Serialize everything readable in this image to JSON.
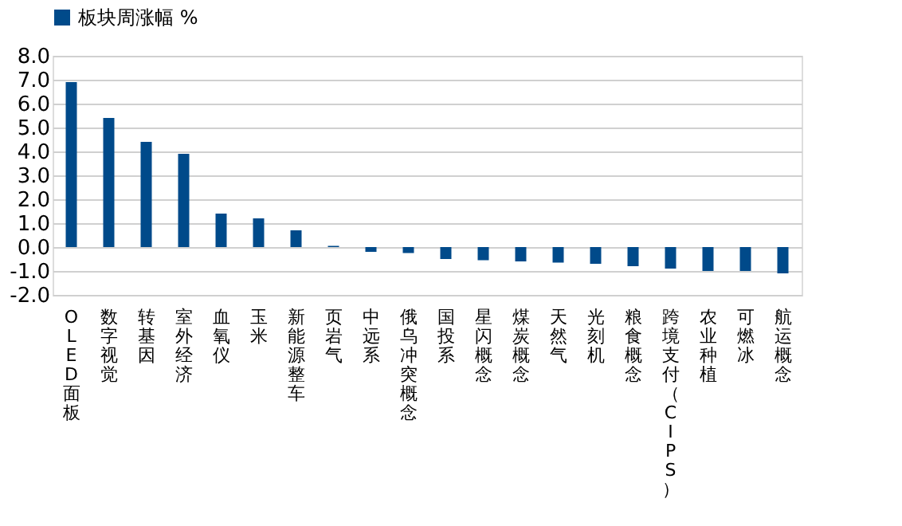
{
  "chart_data": {
    "type": "bar",
    "categories": [
      "OLED面板",
      "数字视觉",
      "转基因",
      "室外经济",
      "血氧仪",
      "玉米",
      "新能源整车",
      "页岩气",
      "中远系",
      "俄乌冲突概念",
      "国投系",
      "星闪概念",
      "煤炭概念",
      "天然气",
      "光刻机",
      "粮食概念",
      "跨境支付（CIPS）",
      "农业种植",
      "可燃冰",
      "航运概念"
    ],
    "series": [
      {
        "name": "板块周涨幅 %",
        "color": "#004a8a",
        "values": [
          6.9,
          5.4,
          4.4,
          3.9,
          1.4,
          1.2,
          0.7,
          0.05,
          -0.2,
          -0.25,
          -0.5,
          -0.55,
          -0.6,
          -0.65,
          -0.7,
          -0.8,
          -0.9,
          -1.0,
          -1.0,
          -1.1
        ]
      }
    ],
    "ylim": [
      -2.0,
      8.0
    ],
    "yticks": [
      {
        "value": -2,
        "label": "-2.0"
      },
      {
        "value": -1,
        "label": "-1.0"
      },
      {
        "value": 0,
        "label": "0.0"
      },
      {
        "value": 1,
        "label": "1.0"
      },
      {
        "value": 2,
        "label": "2.0"
      },
      {
        "value": 3,
        "label": "3.0"
      },
      {
        "value": 4,
        "label": "4.0"
      },
      {
        "value": 5,
        "label": "5.0"
      },
      {
        "value": 6,
        "label": "6.0"
      },
      {
        "value": 7,
        "label": "7.0"
      },
      {
        "value": 8,
        "label": "8.0"
      }
    ],
    "grid": "y",
    "legend": "top"
  }
}
